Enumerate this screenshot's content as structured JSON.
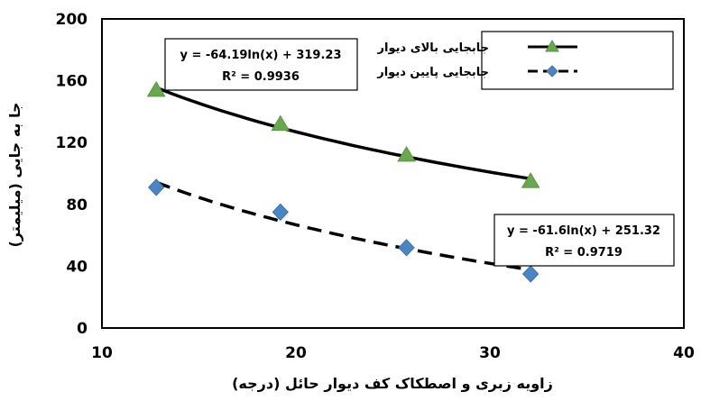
{
  "chart_data": {
    "type": "scatter",
    "title": "",
    "xlabel": "زاویه زبری و اصطکاک کف دیوار حائل (درجه)",
    "ylabel": "جا به جایی (میلیمتر)",
    "xlim": [
      10,
      40
    ],
    "ylim": [
      0,
      200
    ],
    "x_ticks": [
      10,
      20,
      30,
      40
    ],
    "y_ticks": [
      0,
      40,
      80,
      120,
      160,
      200
    ],
    "grid": false,
    "legend_position": "top-right",
    "series": [
      {
        "name": "جابجایی بالای دیوار",
        "marker": "triangle",
        "color": "#6aa84f",
        "line_style": "solid",
        "x": [
          12.8,
          19.2,
          25.7,
          32.1
        ],
        "y": [
          154,
          132,
          112,
          95
        ],
        "trendline": {
          "equation": "y = -64.19ln(x) + 319.23",
          "r2": "R² = 0.9936",
          "a": -64.19,
          "b": 319.23,
          "x_range": [
            12.8,
            32.1
          ]
        }
      },
      {
        "name": "جابجایی پایین دیوار",
        "marker": "diamond",
        "color": "#4a86c5",
        "line_style": "dashed",
        "x": [
          12.8,
          19.2,
          25.7,
          32.1
        ],
        "y": [
          91,
          75,
          52,
          35
        ],
        "trendline": {
          "equation": "y = -61.6ln(x) + 251.32",
          "r2": "R² = 0.9719",
          "a": -61.6,
          "b": 251.32,
          "x_range": [
            12.8,
            32.1
          ]
        }
      }
    ]
  }
}
